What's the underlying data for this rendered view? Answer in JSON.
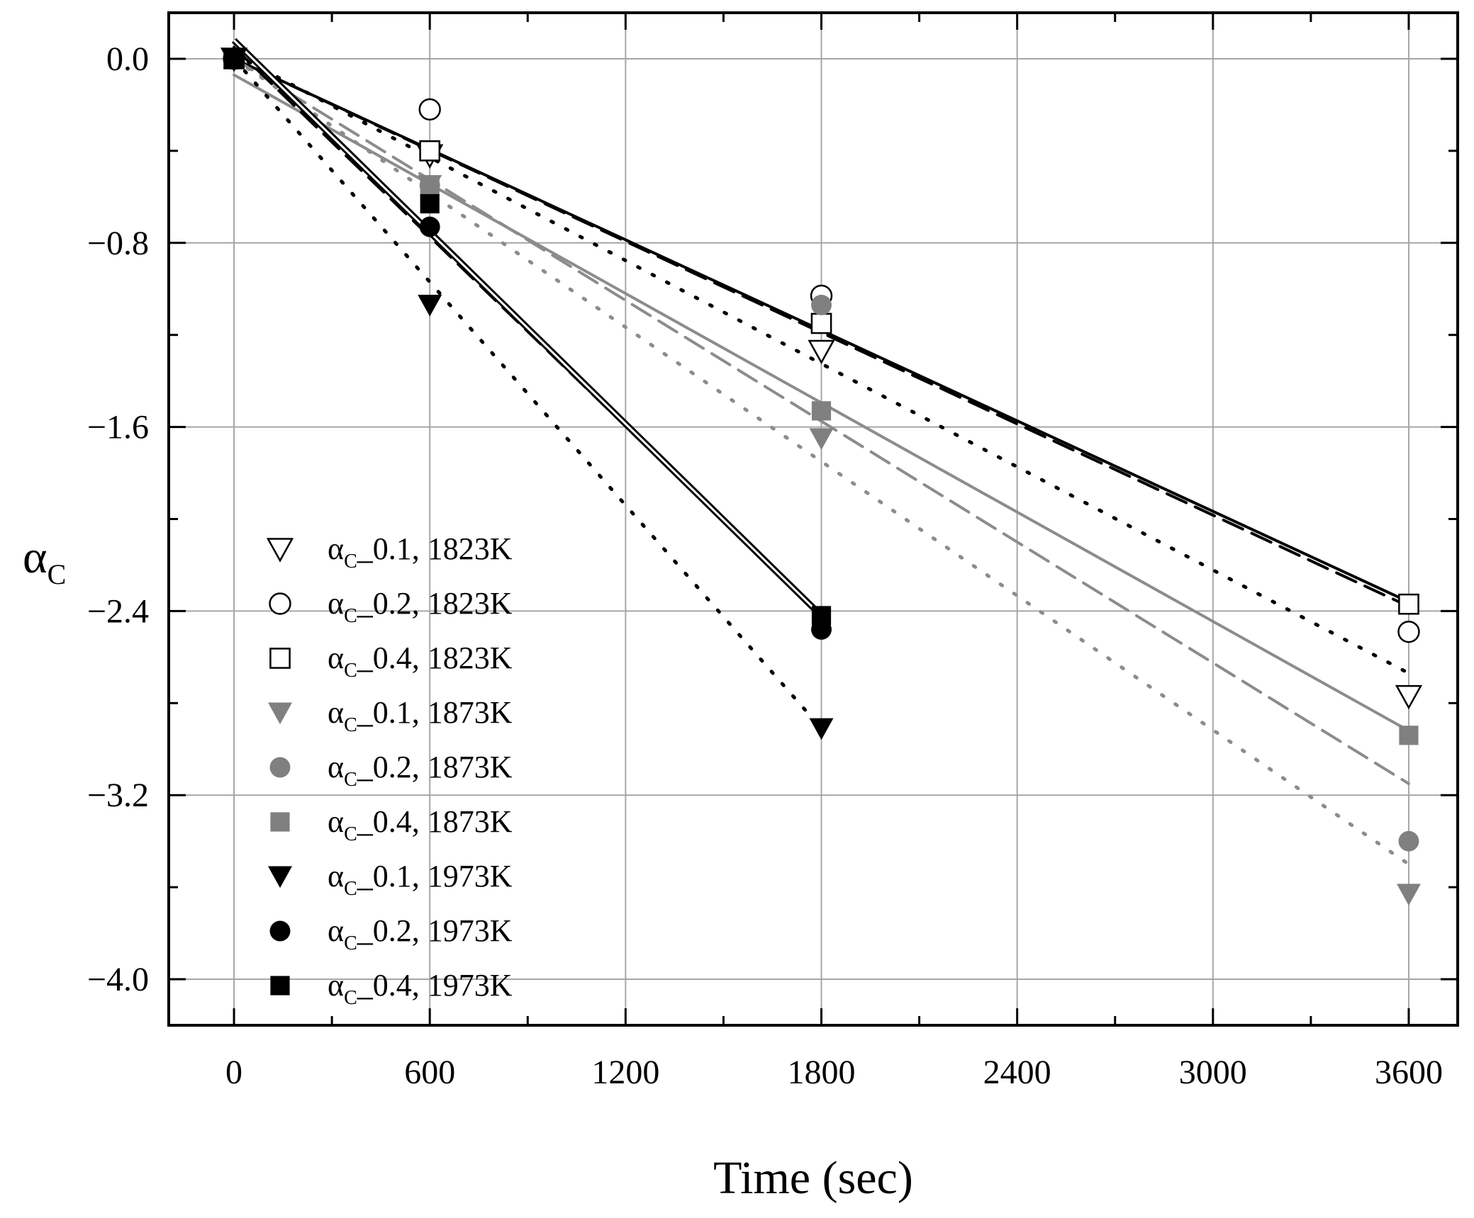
{
  "chart_data": {
    "type": "scatter",
    "title": "",
    "xlabel": "Time (sec)",
    "ylabel_main": "α",
    "ylabel_sub": "C",
    "xlim": [
      -200,
      3750
    ],
    "ylim": [
      -4.2,
      0.2
    ],
    "xticks": [
      0,
      600,
      1200,
      1800,
      2400,
      3000,
      3600
    ],
    "xtick_labels": [
      "0",
      "600",
      "1200",
      "1800",
      "2400",
      "3000",
      "3600"
    ],
    "yticks": [
      0.0,
      -0.8,
      -1.6,
      -2.4,
      -3.2,
      -4.0
    ],
    "ytick_labels": [
      "0.0",
      "−0.8",
      "−1.6",
      "−2.4",
      "−3.2",
      "−4.0"
    ],
    "grid": true,
    "legend_position": "left-center",
    "series": [
      {
        "name": "α_C_0.1, 1823K",
        "legend_main": "α",
        "legend_sub": "C",
        "legend_rest": "_0.1, 1823K",
        "marker": "triangle-down-open",
        "color": "#000000",
        "x": [
          0,
          600,
          1800,
          3600
        ],
        "y": [
          0.0,
          -0.42,
          -1.27,
          -2.77
        ],
        "fit": {
          "style": "dotted",
          "color": "#000000",
          "x": [
            0,
            3600
          ],
          "y": [
            0.02,
            -2.67
          ]
        }
      },
      {
        "name": "α_C_0.2, 1823K",
        "legend_main": "α",
        "legend_sub": "C",
        "legend_rest": "_0.2, 1823K",
        "marker": "circle-open",
        "color": "#000000",
        "x": [
          0,
          600,
          1800,
          3600
        ],
        "y": [
          0.0,
          -0.22,
          -1.03,
          -2.49
        ],
        "fit": {
          "style": "dashed",
          "color": "#000000",
          "x": [
            0,
            3600
          ],
          "y": [
            0.0,
            -2.38
          ]
        }
      },
      {
        "name": "α_C_0.4, 1823K",
        "legend_main": "α",
        "legend_sub": "C",
        "legend_rest": "_0.4, 1823K",
        "marker": "square-open",
        "color": "#000000",
        "x": [
          0,
          600,
          1800,
          3600
        ],
        "y": [
          0.0,
          -0.4,
          -1.15,
          -2.37
        ],
        "fit": {
          "style": "solid",
          "color": "#000000",
          "x": [
            0,
            3600
          ],
          "y": [
            0.0,
            -2.36
          ]
        }
      },
      {
        "name": "α_C_0.1, 1873K",
        "legend_main": "α",
        "legend_sub": "C",
        "legend_rest": "_0.1, 1873K",
        "marker": "triangle-down-filled",
        "color": "#808080",
        "x": [
          0,
          600,
          1800,
          3600
        ],
        "y": [
          0.0,
          -0.55,
          -1.65,
          -3.63
        ],
        "fit": {
          "style": "dotted",
          "color": "#8c8c8c",
          "x": [
            0,
            3600
          ],
          "y": [
            0.0,
            -3.5
          ]
        }
      },
      {
        "name": "α_C_0.2, 1873K",
        "legend_main": "α",
        "legend_sub": "C",
        "legend_rest": "_0.2, 1873K",
        "marker": "circle-filled",
        "color": "#808080",
        "x": [
          0,
          600,
          1800,
          3600
        ],
        "y": [
          0.0,
          -0.55,
          -1.07,
          -3.4
        ],
        "fit": {
          "style": "dashed",
          "color": "#8c8c8c",
          "x": [
            0,
            3600
          ],
          "y": [
            0.0,
            -3.15
          ]
        }
      },
      {
        "name": "α_C_0.4, 1873K",
        "legend_main": "α",
        "legend_sub": "C",
        "legend_rest": "_0.4, 1873K",
        "marker": "square-filled",
        "color": "#808080",
        "x": [
          0,
          600,
          1800,
          3600
        ],
        "y": [
          0.0,
          -0.55,
          -1.53,
          -2.94
        ],
        "fit": {
          "style": "solid",
          "color": "#8c8c8c",
          "x": [
            0,
            3600
          ],
          "y": [
            -0.07,
            -2.92
          ]
        }
      },
      {
        "name": "α_C_0.1, 1973K",
        "legend_main": "α",
        "legend_sub": "C",
        "legend_rest": "_0.1, 1973K",
        "marker": "triangle-down-filled",
        "color": "#000000",
        "x": [
          0,
          600,
          1800
        ],
        "y": [
          0.0,
          -1.07,
          -2.91
        ],
        "fit": {
          "style": "dotted",
          "color": "#000000",
          "x": [
            0,
            1800
          ],
          "y": [
            0.0,
            -2.91
          ]
        }
      },
      {
        "name": "α_C_0.2, 1973K",
        "legend_main": "α",
        "legend_sub": "C",
        "legend_rest": "_0.2, 1973K",
        "marker": "circle-filled",
        "color": "#000000",
        "x": [
          0,
          600,
          1800
        ],
        "y": [
          0.0,
          -0.73,
          -2.48
        ],
        "fit": {
          "style": "dashed",
          "color": "#000000",
          "x": [
            0,
            1800
          ],
          "y": [
            0.05,
            -2.42
          ]
        }
      },
      {
        "name": "α_C_0.4, 1973K",
        "legend_main": "α",
        "legend_sub": "C",
        "legend_rest": "_0.4, 1973K",
        "marker": "square-filled",
        "color": "#000000",
        "x": [
          0,
          600,
          1800
        ],
        "y": [
          0.0,
          -0.63,
          -2.42
        ],
        "fit": {
          "style": "double",
          "color": "#000000",
          "x": [
            0,
            1800
          ],
          "y": [
            0.08,
            -2.42
          ]
        }
      }
    ]
  }
}
